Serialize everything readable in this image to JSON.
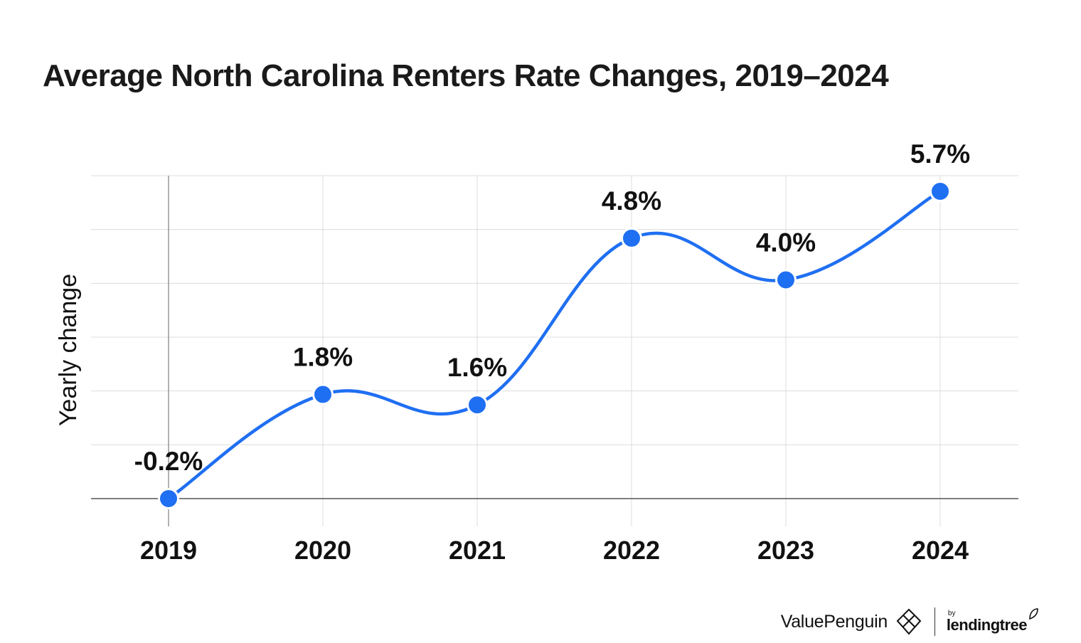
{
  "title": "Average North Carolina Renters Rate Changes, 2019–2024",
  "chart_data": {
    "type": "line",
    "title": "Average North Carolina Renters Rate Changes, 2019–2024",
    "xlabel": "",
    "ylabel": "Yearly change",
    "categories": [
      "2019",
      "2020",
      "2021",
      "2022",
      "2023",
      "2024"
    ],
    "values": [
      -0.2,
      1.8,
      1.6,
      4.8,
      4.0,
      5.7
    ],
    "data_labels": [
      "-0.2%",
      "1.8%",
      "1.6%",
      "4.8%",
      "4.0%",
      "5.7%"
    ],
    "ylim": [
      -0.2,
      6.0
    ],
    "grid": true,
    "series_color": "#1f6ff2"
  },
  "brand": {
    "name": "ValuePenguin",
    "by": "by",
    "partner": "lendingtree"
  }
}
